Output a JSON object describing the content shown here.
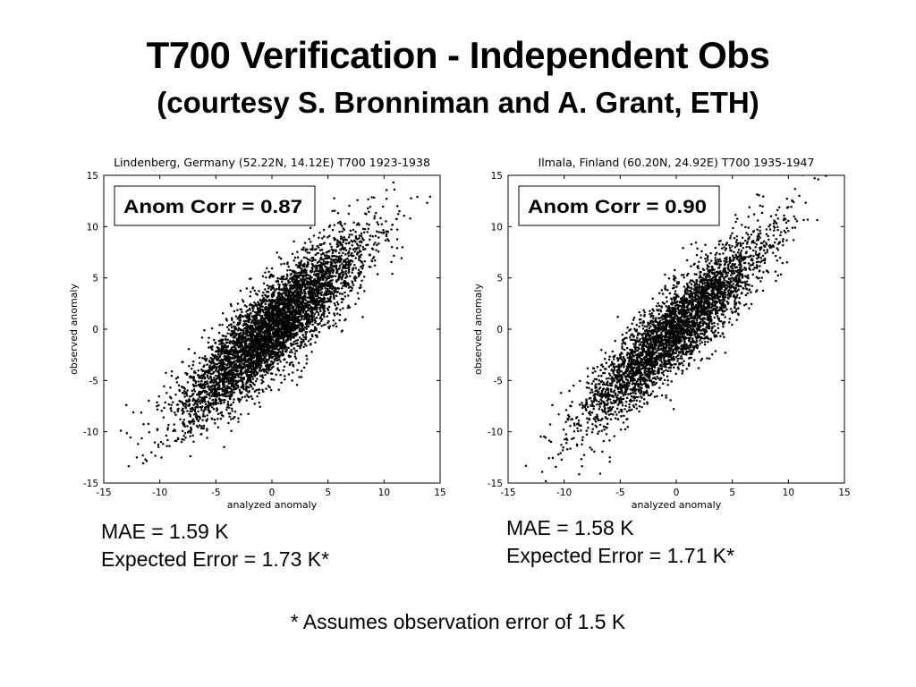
{
  "slide": {
    "title": "T700 Verification - Independent Obs",
    "subtitle": "(courtesy S. Bronniman and A. Grant, ETH)",
    "footnote": "* Assumes observation error of 1.5 K"
  },
  "left_stats": {
    "mae": "MAE = 1.59 K",
    "expected": "Expected Error = 1.73 K*"
  },
  "right_stats": {
    "mae": "MAE = 1.58 K",
    "expected": "Expected Error = 1.71 K*"
  },
  "chart_data": [
    {
      "type": "scatter",
      "title": "Lindenberg, Germany (52.22N, 14.12E) T700 1923-1938",
      "annotation": "Anom Corr  = 0.87",
      "xlabel": "analyzed anomaly",
      "ylabel": "observed anomaly",
      "xlim": [
        -15,
        15
      ],
      "ylim": [
        -15,
        15
      ],
      "ticks": [
        -15,
        -10,
        -5,
        0,
        5,
        10,
        15
      ],
      "grid": false,
      "marker_color": "#000000",
      "correlation": 0.87,
      "points_approx": 5000,
      "x_spread": 4.0,
      "y_spread": 4.4
    },
    {
      "type": "scatter",
      "title": "Ilmala, Finland (60.20N, 24.92E) T700 1935-1947",
      "annotation": "Anom Corr = 0.90",
      "xlabel": "analyzed anomaly",
      "ylabel": "observed anomaly",
      "xlim": [
        -15,
        15
      ],
      "ylim": [
        -15,
        15
      ],
      "ticks": [
        -15,
        -10,
        -5,
        0,
        5,
        10,
        15
      ],
      "grid": false,
      "marker_color": "#000000",
      "correlation": 0.9,
      "points_approx": 3800,
      "x_spread": 4.1,
      "y_spread": 4.6
    }
  ]
}
